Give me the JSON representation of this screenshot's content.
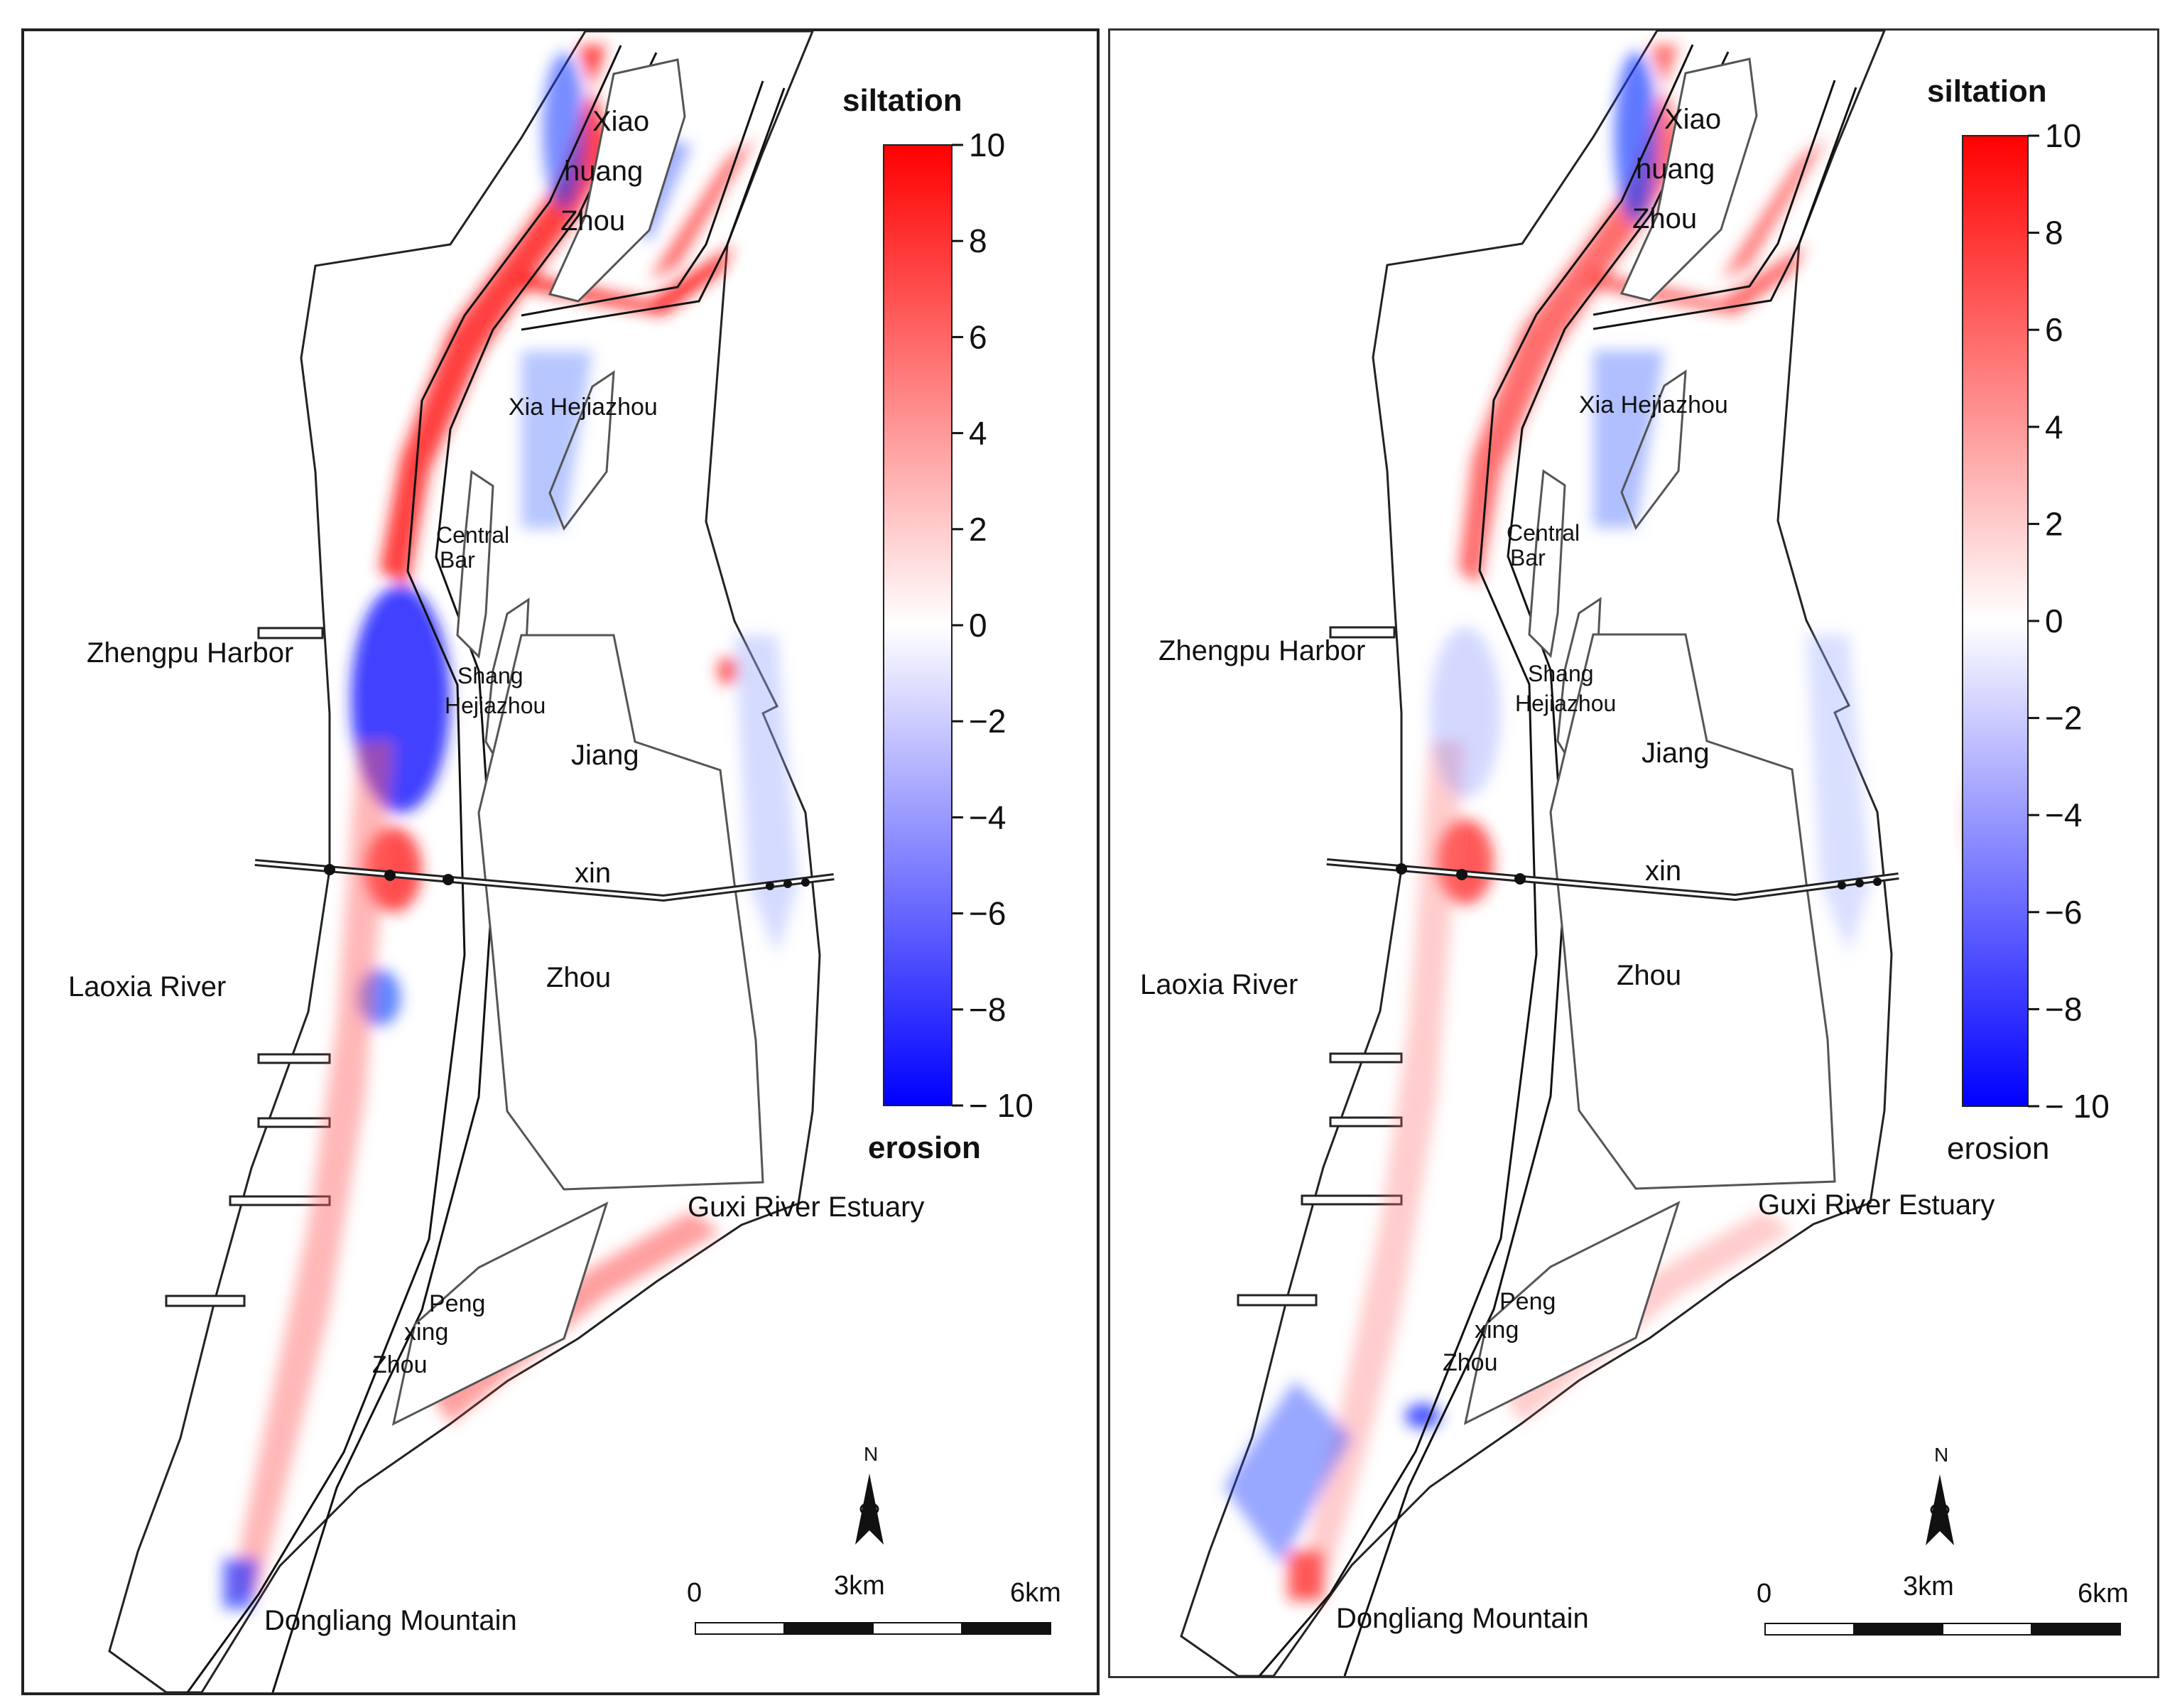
{
  "colorbar": {
    "top_label": "siltation",
    "bottom_label": "erosion",
    "ticks": [
      "10",
      "8",
      "6",
      "4",
      "2",
      "0",
      "−2",
      "−4",
      "−6",
      "−8",
      "− 10"
    ],
    "range": [
      -10,
      10
    ],
    "color_high": "#ff0000",
    "color_mid": "#ffffff",
    "color_low": "#0000ff"
  },
  "places": {
    "xiao": "Xiao",
    "huang": "huang",
    "zhou_top": "Zhou",
    "xia_hejiazhou": "Xia Hejiazhou",
    "central": "Central",
    "bar": "Bar",
    "shang": "Shang",
    "hejiazhou": "Hejiazhou",
    "jiang": "Jiang",
    "xin": "xin",
    "zhou_mid": "Zhou",
    "zhengpu_harbor": "Zhengpu Harbor",
    "laoxia_river": "Laoxia River",
    "guxi_river_estuary": "Guxi River Estuary",
    "peng": "Peng",
    "xing": "xing",
    "zhou_low": "Zhou",
    "dongliang_mountain": "Dongliang Mountain"
  },
  "north_arrow": {
    "label": "N"
  },
  "scale_bar": {
    "labels": [
      "0",
      "3km",
      "6km"
    ]
  }
}
